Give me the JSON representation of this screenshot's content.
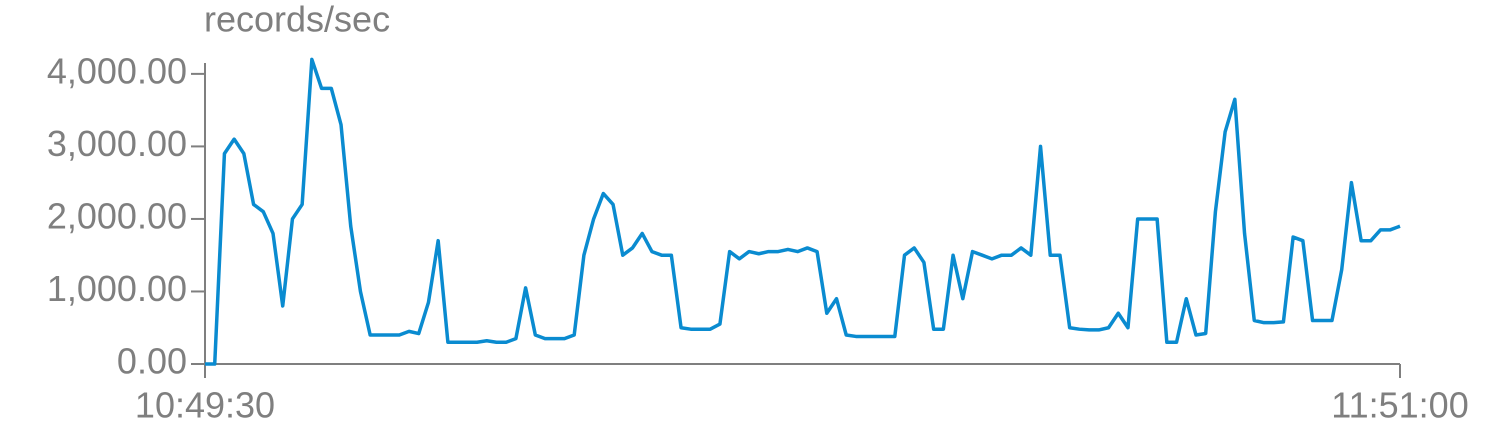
{
  "chart_data": {
    "type": "line",
    "y_axis_label": "records/sec",
    "color": "#0a8bd0",
    "x": [
      "10:49:30",
      "10:50:00",
      "10:50:30",
      "10:51:00",
      "10:51:30",
      "10:52:00",
      "10:52:30",
      "10:53:00",
      "10:53:30",
      "10:54:00",
      "10:54:30",
      "10:55:00",
      "10:55:30",
      "10:56:00",
      "10:56:30",
      "10:57:00",
      "10:57:30",
      "10:58:00",
      "10:58:30",
      "10:59:00",
      "10:59:30",
      "11:00:00",
      "11:00:30",
      "11:01:00",
      "11:01:30",
      "11:02:00",
      "11:02:30",
      "11:03:00",
      "11:03:30",
      "11:04:00",
      "11:04:30",
      "11:05:00",
      "11:05:30",
      "11:06:00",
      "11:06:30",
      "11:07:00",
      "11:07:30",
      "11:08:00",
      "11:08:30",
      "11:09:00",
      "11:09:30",
      "11:10:00",
      "11:10:30",
      "11:11:00",
      "11:11:30",
      "11:12:00",
      "11:12:30",
      "11:13:00",
      "11:13:30",
      "11:14:00",
      "11:14:30",
      "11:15:00",
      "11:15:30",
      "11:16:00",
      "11:16:30",
      "11:17:00",
      "11:17:30",
      "11:18:00",
      "11:18:30",
      "11:19:00",
      "11:19:30",
      "11:20:00",
      "11:20:30",
      "11:21:00",
      "11:21:30",
      "11:22:00",
      "11:22:30",
      "11:23:00",
      "11:23:30",
      "11:24:00",
      "11:24:30",
      "11:25:00",
      "11:25:30",
      "11:26:00",
      "11:26:30",
      "11:27:00",
      "11:27:30",
      "11:28:00",
      "11:28:30",
      "11:29:00",
      "11:29:30",
      "11:30:00",
      "11:30:30",
      "11:31:00",
      "11:31:30",
      "11:32:00",
      "11:32:30",
      "11:33:00",
      "11:33:30",
      "11:34:00",
      "11:34:30",
      "11:35:00",
      "11:35:30",
      "11:36:00",
      "11:36:30",
      "11:37:00",
      "11:37:30",
      "11:38:00",
      "11:38:30",
      "11:39:00",
      "11:39:30",
      "11:40:00",
      "11:40:30",
      "11:41:00",
      "11:41:30",
      "11:42:00",
      "11:42:30",
      "11:43:00",
      "11:43:30",
      "11:44:00",
      "11:44:30",
      "11:45:00",
      "11:45:30",
      "11:46:00",
      "11:46:30",
      "11:47:00",
      "11:47:30",
      "11:48:00",
      "11:48:30",
      "11:49:00",
      "11:49:30",
      "11:50:00",
      "11:50:30",
      "11:51:00"
    ],
    "values": [
      0,
      0,
      2900,
      3100,
      2900,
      2200,
      2100,
      1800,
      800,
      2000,
      2200,
      4200,
      3800,
      3800,
      3300,
      1900,
      1000,
      400,
      400,
      400,
      400,
      450,
      420,
      850,
      1700,
      300,
      300,
      300,
      300,
      320,
      300,
      300,
      350,
      1050,
      400,
      350,
      350,
      350,
      400,
      1500,
      2000,
      2350,
      2200,
      1500,
      1600,
      1800,
      1550,
      1500,
      1500,
      500,
      480,
      480,
      480,
      550,
      1550,
      1450,
      1550,
      1520,
      1550,
      1550,
      1580,
      1550,
      1600,
      1550,
      700,
      900,
      400,
      380,
      380,
      380,
      380,
      380,
      1500,
      1600,
      1400,
      480,
      480,
      1500,
      900,
      1550,
      1500,
      1450,
      1500,
      1500,
      1600,
      1500,
      3000,
      1500,
      1500,
      500,
      480,
      470,
      470,
      500,
      700,
      500,
      2000,
      2000,
      2000,
      300,
      300,
      900,
      400,
      420,
      2100,
      3200,
      3650,
      1800,
      600,
      570,
      570,
      580,
      1750,
      1700,
      600,
      600,
      600,
      1300,
      2500,
      1700,
      1700,
      1850,
      1850,
      1900
    ],
    "xlim": [
      "10:49:30",
      "11:51:00"
    ],
    "xticks": [
      "10:49:30",
      "11:51:00"
    ],
    "ylim": [
      0,
      4150
    ],
    "yticks": [
      {
        "value": 0,
        "label": "0.00"
      },
      {
        "value": 1000,
        "label": "1,000.00"
      },
      {
        "value": 2000,
        "label": "2,000.00"
      },
      {
        "value": 3000,
        "label": "3,000.00"
      },
      {
        "value": 4000,
        "label": "4,000.00"
      }
    ]
  }
}
